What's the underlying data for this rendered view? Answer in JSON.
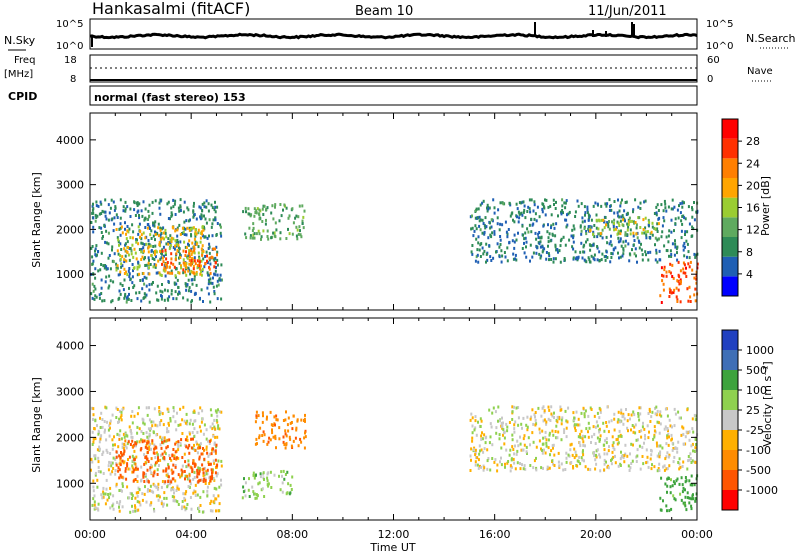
{
  "header": {
    "station": "Hankasalmi (fitACF)",
    "beam": "Beam 10",
    "date": "11/Jun/2011",
    "cpid_label": "CPID",
    "cpid_value": "normal (fast stereo) 153"
  },
  "noise_panel": {
    "left_label": "N.Sky",
    "right_label": "N.Search",
    "left_ticks": [
      "10^5",
      "10^0"
    ],
    "right_ticks": [
      "10^5",
      "10^0"
    ]
  },
  "freq_panel": {
    "left_label_line1": "Freq",
    "left_label_line2": "[MHz]",
    "left_ticks": [
      "18",
      "8"
    ],
    "right_label": "Nave",
    "right_ticks": [
      "60",
      "0"
    ]
  },
  "colors": {
    "power_scale": [
      "#0000ff",
      "#1f5fb4",
      "#2e8b57",
      "#5faa5f",
      "#9acd32",
      "#ffa500",
      "#ff7f00",
      "#ff3000",
      "#ff0000"
    ],
    "velocity_scale": [
      "#ff0000",
      "#ff5500",
      "#ff8c00",
      "#ffb000",
      "#c8c8c8",
      "#8fd14f",
      "#3da33d",
      "#3f6fb6",
      "#2040c0"
    ]
  },
  "chart_data": [
    {
      "type": "heatmap",
      "title": "",
      "xlabel": "Time UT",
      "ylabel": "Slant Range [km]",
      "x_ticks": [
        "00:00",
        "04:00",
        "08:00",
        "12:00",
        "16:00",
        "20:00",
        "00:00"
      ],
      "y_ticks": [
        1000,
        2000,
        3000,
        4000
      ],
      "ylim": [
        200,
        4600
      ],
      "colorbar": {
        "label": "Power [dB]",
        "ticks": [
          4,
          8,
          12,
          16,
          20,
          24,
          28
        ]
      },
      "regions": [
        {
          "t0": 0.0,
          "t1": 5.2,
          "r0": 400,
          "r1": 2700,
          "level": 8
        },
        {
          "t0": 1.0,
          "t1": 4.5,
          "r0": 1000,
          "r1": 2100,
          "level": 18
        },
        {
          "t0": 2.8,
          "t1": 5.0,
          "r0": 1050,
          "r1": 1600,
          "level": 24
        },
        {
          "t0": 6.0,
          "t1": 8.5,
          "r0": 1800,
          "r1": 2600,
          "level": 12
        },
        {
          "t0": 15.0,
          "t1": 24.0,
          "r0": 1300,
          "r1": 2700,
          "level": 8
        },
        {
          "t0": 19.5,
          "t1": 22.5,
          "r0": 1900,
          "r1": 2300,
          "level": 16
        },
        {
          "t0": 22.5,
          "t1": 24.0,
          "r0": 400,
          "r1": 1300,
          "level": 26
        }
      ]
    },
    {
      "type": "heatmap",
      "title": "",
      "xlabel": "Time UT",
      "ylabel": "Slant Range [km]",
      "x_ticks": [
        "00:00",
        "04:00",
        "08:00",
        "12:00",
        "16:00",
        "20:00",
        "00:00"
      ],
      "y_ticks": [
        1000,
        2000,
        3000,
        4000
      ],
      "ylim": [
        200,
        4600
      ],
      "colorbar": {
        "label": "Velocity [m s⁻¹]",
        "ticks": [
          1000,
          500,
          100,
          25,
          -25,
          -100,
          -500,
          -1000
        ]
      },
      "regions": [
        {
          "t0": 0.0,
          "t1": 5.2,
          "r0": 400,
          "r1": 2700,
          "level": 0
        },
        {
          "t0": 1.0,
          "t1": 5.0,
          "r0": 1050,
          "r1": 2000,
          "level": -300
        },
        {
          "t0": 6.5,
          "t1": 8.5,
          "r0": 1800,
          "r1": 2600,
          "level": -200
        },
        {
          "t0": 6.0,
          "t1": 8.0,
          "r0": 700,
          "r1": 1300,
          "level": 60
        },
        {
          "t0": 15.0,
          "t1": 24.0,
          "r0": 1300,
          "r1": 2700,
          "level": 0
        },
        {
          "t0": 22.5,
          "t1": 24.0,
          "r0": 400,
          "r1": 1200,
          "level": 150
        }
      ]
    }
  ]
}
